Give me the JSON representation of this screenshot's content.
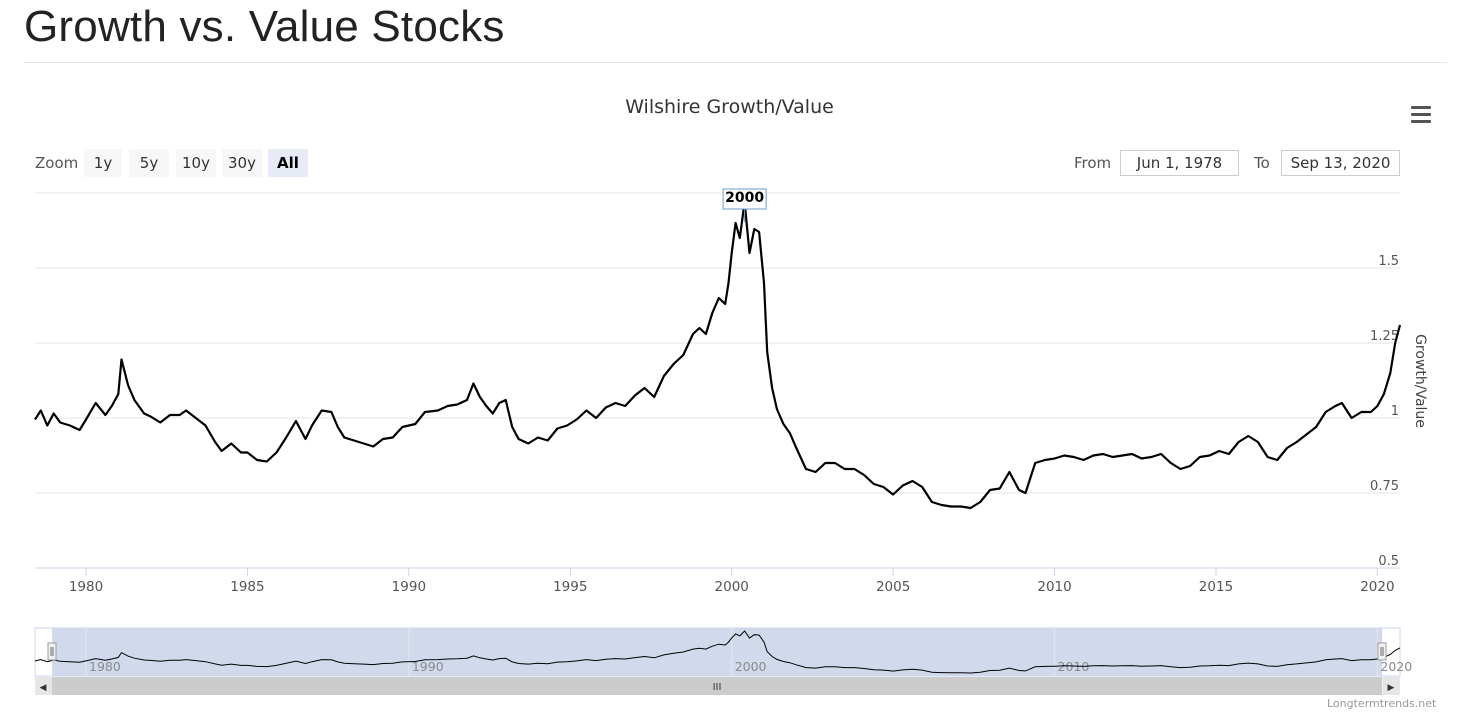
{
  "page": {
    "title": "Growth vs. Value Stocks"
  },
  "toolbar": {
    "zoom_label": "Zoom",
    "zoom_buttons": [
      "1y",
      "5y",
      "10y",
      "30y",
      "All"
    ],
    "active_zoom": "All",
    "from_label": "From",
    "from_value": "Jun 1, 1978",
    "to_label": "To",
    "to_value": "Sep 13, 2020",
    "menu_icon": "hamburger-menu-icon"
  },
  "annotation": {
    "label": "2000"
  },
  "navigator": {
    "handle_grip": "III",
    "left_arrow": "◀",
    "right_arrow": "▶"
  },
  "credit": "Longtermtrends.net",
  "colors": {
    "line": "#000000",
    "grid": "#e6e6e6",
    "navigator_mask": "#ccd6eb",
    "annotation_border": "#6e9bd4"
  },
  "chart_data": {
    "type": "line",
    "title": "Wilshire Growth/Value",
    "ylabel": "Growth/Value",
    "ylim": [
      0.5,
      1.75
    ],
    "y_ticks": [
      "0.5",
      "0.75",
      "1",
      "1.25",
      "1.5"
    ],
    "x_ticks": [
      "1980",
      "1985",
      "1990",
      "1995",
      "2000",
      "2005",
      "2010",
      "2015",
      "2020"
    ],
    "xlim": [
      1978.42,
      2020.7
    ],
    "grid": true,
    "legend": "none",
    "series": [
      {
        "x": [
          1978.42,
          1978.6,
          1978.8,
          1979.0,
          1979.2,
          1979.5,
          1979.8,
          1980.0,
          1980.3,
          1980.6,
          1980.8,
          1981.0,
          1981.1,
          1981.3,
          1981.5,
          1981.8,
          1982.0,
          1982.3,
          1982.6,
          1982.9,
          1983.1,
          1983.4,
          1983.7,
          1984.0,
          1984.2,
          1984.5,
          1984.8,
          1985.0,
          1985.3,
          1985.6,
          1985.9,
          1986.2,
          1986.5,
          1986.8,
          1987.0,
          1987.3,
          1987.6,
          1987.8,
          1988.0,
          1988.3,
          1988.6,
          1988.9,
          1989.2,
          1989.5,
          1989.8,
          1990.2,
          1990.5,
          1990.9,
          1991.2,
          1991.5,
          1991.8,
          1992.0,
          1992.2,
          1992.4,
          1992.6,
          1992.8,
          1993.0,
          1993.2,
          1993.4,
          1993.7,
          1994.0,
          1994.3,
          1994.6,
          1994.9,
          1995.2,
          1995.5,
          1995.8,
          1996.1,
          1996.4,
          1996.7,
          1997.0,
          1997.3,
          1997.6,
          1997.9,
          1998.2,
          1998.5,
          1998.8,
          1999.0,
          1999.2,
          1999.4,
          1999.6,
          1999.8,
          1999.9,
          2000.0,
          2000.12,
          2000.25,
          2000.4,
          2000.55,
          2000.7,
          2000.85,
          2001.0,
          2001.1,
          2001.25,
          2001.4,
          2001.6,
          2001.8,
          2002.0,
          2002.3,
          2002.6,
          2002.9,
          2003.2,
          2003.5,
          2003.8,
          2004.1,
          2004.4,
          2004.7,
          2005.0,
          2005.3,
          2005.6,
          2005.9,
          2006.2,
          2006.5,
          2006.8,
          2007.1,
          2007.4,
          2007.7,
          2008.0,
          2008.3,
          2008.6,
          2008.9,
          2009.1,
          2009.4,
          2009.7,
          2010.0,
          2010.3,
          2010.6,
          2010.9,
          2011.2,
          2011.5,
          2011.8,
          2012.1,
          2012.4,
          2012.7,
          2013.0,
          2013.3,
          2013.6,
          2013.9,
          2014.2,
          2014.5,
          2014.8,
          2015.1,
          2015.4,
          2015.7,
          2016.0,
          2016.3,
          2016.6,
          2016.9,
          2017.2,
          2017.5,
          2017.8,
          2018.1,
          2018.4,
          2018.7,
          2018.9,
          2019.2,
          2019.5,
          2019.8,
          2020.0,
          2020.2,
          2020.4,
          2020.55,
          2020.7
        ],
        "values": [
          0.995,
          1.025,
          0.975,
          1.015,
          0.985,
          0.975,
          0.96,
          0.995,
          1.05,
          1.01,
          1.04,
          1.08,
          1.195,
          1.11,
          1.06,
          1.015,
          1.005,
          0.985,
          1.01,
          1.01,
          1.025,
          1.0,
          0.975,
          0.92,
          0.89,
          0.915,
          0.885,
          0.885,
          0.86,
          0.855,
          0.885,
          0.935,
          0.99,
          0.93,
          0.975,
          1.025,
          1.02,
          0.97,
          0.935,
          0.925,
          0.915,
          0.905,
          0.93,
          0.935,
          0.97,
          0.98,
          1.02,
          1.025,
          1.04,
          1.045,
          1.06,
          1.115,
          1.07,
          1.04,
          1.015,
          1.05,
          1.06,
          0.97,
          0.93,
          0.915,
          0.935,
          0.925,
          0.965,
          0.975,
          0.995,
          1.025,
          1.0,
          1.035,
          1.05,
          1.04,
          1.075,
          1.1,
          1.07,
          1.14,
          1.18,
          1.21,
          1.28,
          1.3,
          1.28,
          1.35,
          1.4,
          1.38,
          1.45,
          1.55,
          1.65,
          1.6,
          1.72,
          1.55,
          1.63,
          1.62,
          1.45,
          1.22,
          1.1,
          1.03,
          0.98,
          0.95,
          0.9,
          0.83,
          0.82,
          0.85,
          0.85,
          0.83,
          0.83,
          0.81,
          0.78,
          0.77,
          0.745,
          0.775,
          0.79,
          0.77,
          0.72,
          0.71,
          0.705,
          0.705,
          0.7,
          0.72,
          0.76,
          0.765,
          0.82,
          0.76,
          0.75,
          0.85,
          0.86,
          0.865,
          0.875,
          0.87,
          0.86,
          0.875,
          0.88,
          0.87,
          0.875,
          0.88,
          0.865,
          0.87,
          0.88,
          0.85,
          0.83,
          0.84,
          0.87,
          0.875,
          0.89,
          0.88,
          0.92,
          0.94,
          0.92,
          0.87,
          0.86,
          0.9,
          0.92,
          0.945,
          0.97,
          1.02,
          1.04,
          1.05,
          1.0,
          1.02,
          1.02,
          1.04,
          1.08,
          1.15,
          1.25,
          1.31
        ]
      }
    ],
    "annotations": [
      "2000"
    ]
  }
}
